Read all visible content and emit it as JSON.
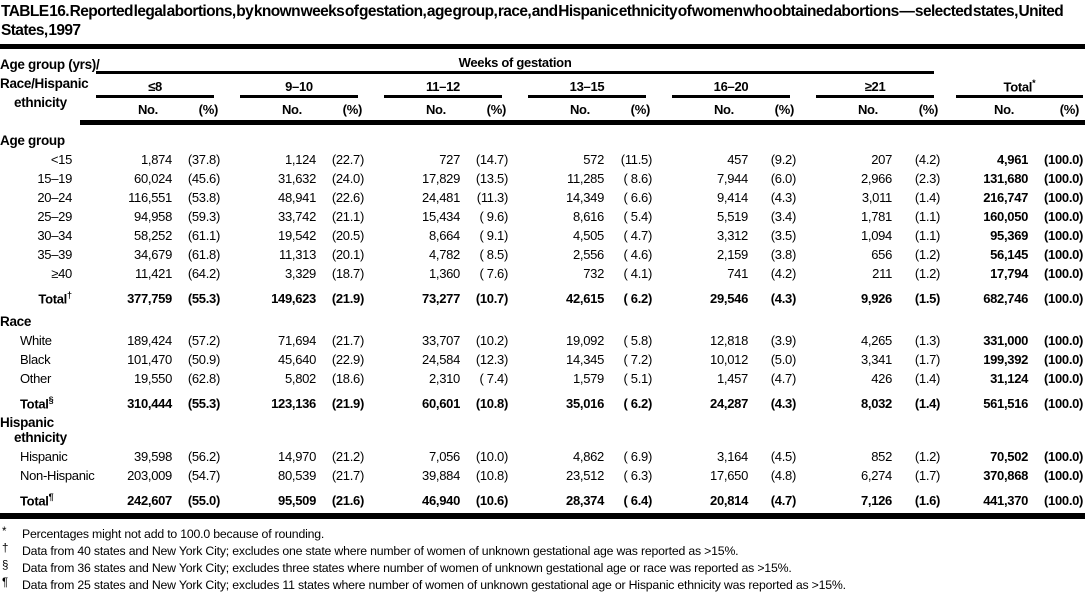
{
  "title": "TABLE 16. Reported legal abortions, by known weeks of gestation, age group, race, and Hispanic ethnicity of women who obtained abortions — selected states, United States, 1997",
  "header": {
    "stub_lines": [
      "Age group (yrs)/",
      "Race/Hispanic",
      "ethnicity"
    ],
    "weeks_label": "Weeks of gestation",
    "groups": [
      "≤8",
      "9–10",
      "11–12",
      "13–15",
      "16–20",
      "≥21"
    ],
    "total_label": "Total",
    "total_sup": "*",
    "no_label": "No.",
    "pct_label": "(%)"
  },
  "sections": [
    {
      "id": "age",
      "heading_lines": [
        "Age group"
      ],
      "rows": [
        {
          "label": "<15",
          "cells": [
            "1,874",
            "(37.8)",
            "1,124",
            "(22.7)",
            "727",
            "(14.7)",
            "572",
            "(11.5)",
            "457",
            "(9.2)",
            "207",
            "(4.2)",
            "4,961",
            "(100.0)"
          ]
        },
        {
          "label": "15–19",
          "cells": [
            "60,024",
            "(45.6)",
            "31,632",
            "(24.0)",
            "17,829",
            "(13.5)",
            "11,285",
            "( 8.6)",
            "7,944",
            "(6.0)",
            "2,966",
            "(2.3)",
            "131,680",
            "(100.0)"
          ]
        },
        {
          "label": "20–24",
          "cells": [
            "116,551",
            "(53.8)",
            "48,941",
            "(22.6)",
            "24,481",
            "(11.3)",
            "14,349",
            "( 6.6)",
            "9,414",
            "(4.3)",
            "3,011",
            "(1.4)",
            "216,747",
            "(100.0)"
          ]
        },
        {
          "label": "25–29",
          "cells": [
            "94,958",
            "(59.3)",
            "33,742",
            "(21.1)",
            "15,434",
            "( 9.6)",
            "8,616",
            "( 5.4)",
            "5,519",
            "(3.4)",
            "1,781",
            "(1.1)",
            "160,050",
            "(100.0)"
          ]
        },
        {
          "label": "30–34",
          "cells": [
            "58,252",
            "(61.1)",
            "19,542",
            "(20.5)",
            "8,664",
            "( 9.1)",
            "4,505",
            "( 4.7)",
            "3,312",
            "(3.5)",
            "1,094",
            "(1.1)",
            "95,369",
            "(100.0)"
          ]
        },
        {
          "label": "35–39",
          "cells": [
            "34,679",
            "(61.8)",
            "11,313",
            "(20.1)",
            "4,782",
            "( 8.5)",
            "2,556",
            "( 4.6)",
            "2,159",
            "(3.8)",
            "656",
            "(1.2)",
            "56,145",
            "(100.0)"
          ]
        },
        {
          "label": "≥40",
          "cells": [
            "11,421",
            "(64.2)",
            "3,329",
            "(18.7)",
            "1,360",
            "( 7.6)",
            "732",
            "( 4.1)",
            "741",
            "(4.2)",
            "211",
            "(1.2)",
            "17,794",
            "(100.0)"
          ]
        }
      ],
      "total": {
        "label": "Total",
        "sup": "†",
        "cells": [
          "377,759",
          "(55.3)",
          "149,623",
          "(21.9)",
          "73,277",
          "(10.7)",
          "42,615",
          "( 6.2)",
          "29,546",
          "(4.3)",
          "9,926",
          "(1.5)",
          "682,746",
          "(100.0)"
        ]
      }
    },
    {
      "id": "race",
      "heading_lines": [
        "Race"
      ],
      "rows": [
        {
          "label": "White",
          "cells": [
            "189,424",
            "(57.2)",
            "71,694",
            "(21.7)",
            "33,707",
            "(10.2)",
            "19,092",
            "( 5.8)",
            "12,818",
            "(3.9)",
            "4,265",
            "(1.3)",
            "331,000",
            "(100.0)"
          ]
        },
        {
          "label": "Black",
          "cells": [
            "101,470",
            "(50.9)",
            "45,640",
            "(22.9)",
            "24,584",
            "(12.3)",
            "14,345",
            "( 7.2)",
            "10,012",
            "(5.0)",
            "3,341",
            "(1.7)",
            "199,392",
            "(100.0)"
          ]
        },
        {
          "label": "Other",
          "cells": [
            "19,550",
            "(62.8)",
            "5,802",
            "(18.6)",
            "2,310",
            "( 7.4)",
            "1,579",
            "( 5.1)",
            "1,457",
            "(4.7)",
            "426",
            "(1.4)",
            "31,124",
            "(100.0)"
          ]
        }
      ],
      "total": {
        "label": "Total",
        "sup": "§",
        "cells": [
          "310,444",
          "(55.3)",
          "123,136",
          "(21.9)",
          "60,601",
          "(10.8)",
          "35,016",
          "( 6.2)",
          "24,287",
          "(4.3)",
          "8,032",
          "(1.4)",
          "561,516",
          "(100.0)"
        ]
      }
    },
    {
      "id": "hispanic",
      "heading_lines": [
        "Hispanic",
        "ethnicity"
      ],
      "rows": [
        {
          "label": "Hispanic",
          "cells": [
            "39,598",
            "(56.2)",
            "14,970",
            "(21.2)",
            "7,056",
            "(10.0)",
            "4,862",
            "( 6.9)",
            "3,164",
            "(4.5)",
            "852",
            "(1.2)",
            "70,502",
            "(100.0)"
          ]
        },
        {
          "label": "Non-Hispanic",
          "cells": [
            "203,009",
            "(54.7)",
            "80,539",
            "(21.7)",
            "39,884",
            "(10.8)",
            "23,512",
            "( 6.3)",
            "17,650",
            "(4.8)",
            "6,274",
            "(1.7)",
            "370,868",
            "(100.0)"
          ]
        }
      ],
      "total": {
        "label": "Total",
        "sup": "¶",
        "cells": [
          "242,607",
          "(55.0)",
          "95,509",
          "(21.6)",
          "46,940",
          "(10.6)",
          "28,374",
          "( 6.4)",
          "20,814",
          "(4.7)",
          "7,126",
          "(1.6)",
          "441,370",
          "(100.0)"
        ]
      }
    }
  ],
  "footnotes": [
    {
      "symbol": "*",
      "text": "Percentages might not add to 100.0 because of rounding."
    },
    {
      "symbol": "†",
      "text": "Data from 40 states and New York City; excludes one state where number of women of unknown gestational age was reported as >15%."
    },
    {
      "symbol": "§",
      "text": "Data from 36 states and New York City; excludes three states where number of women of unknown gestational age or race was reported as >15%."
    },
    {
      "symbol": "¶",
      "text": "Data from 25 states and New York City; excludes 11 states where number of women of unknown gestational age or Hispanic ethnicity was reported as >15%."
    }
  ]
}
